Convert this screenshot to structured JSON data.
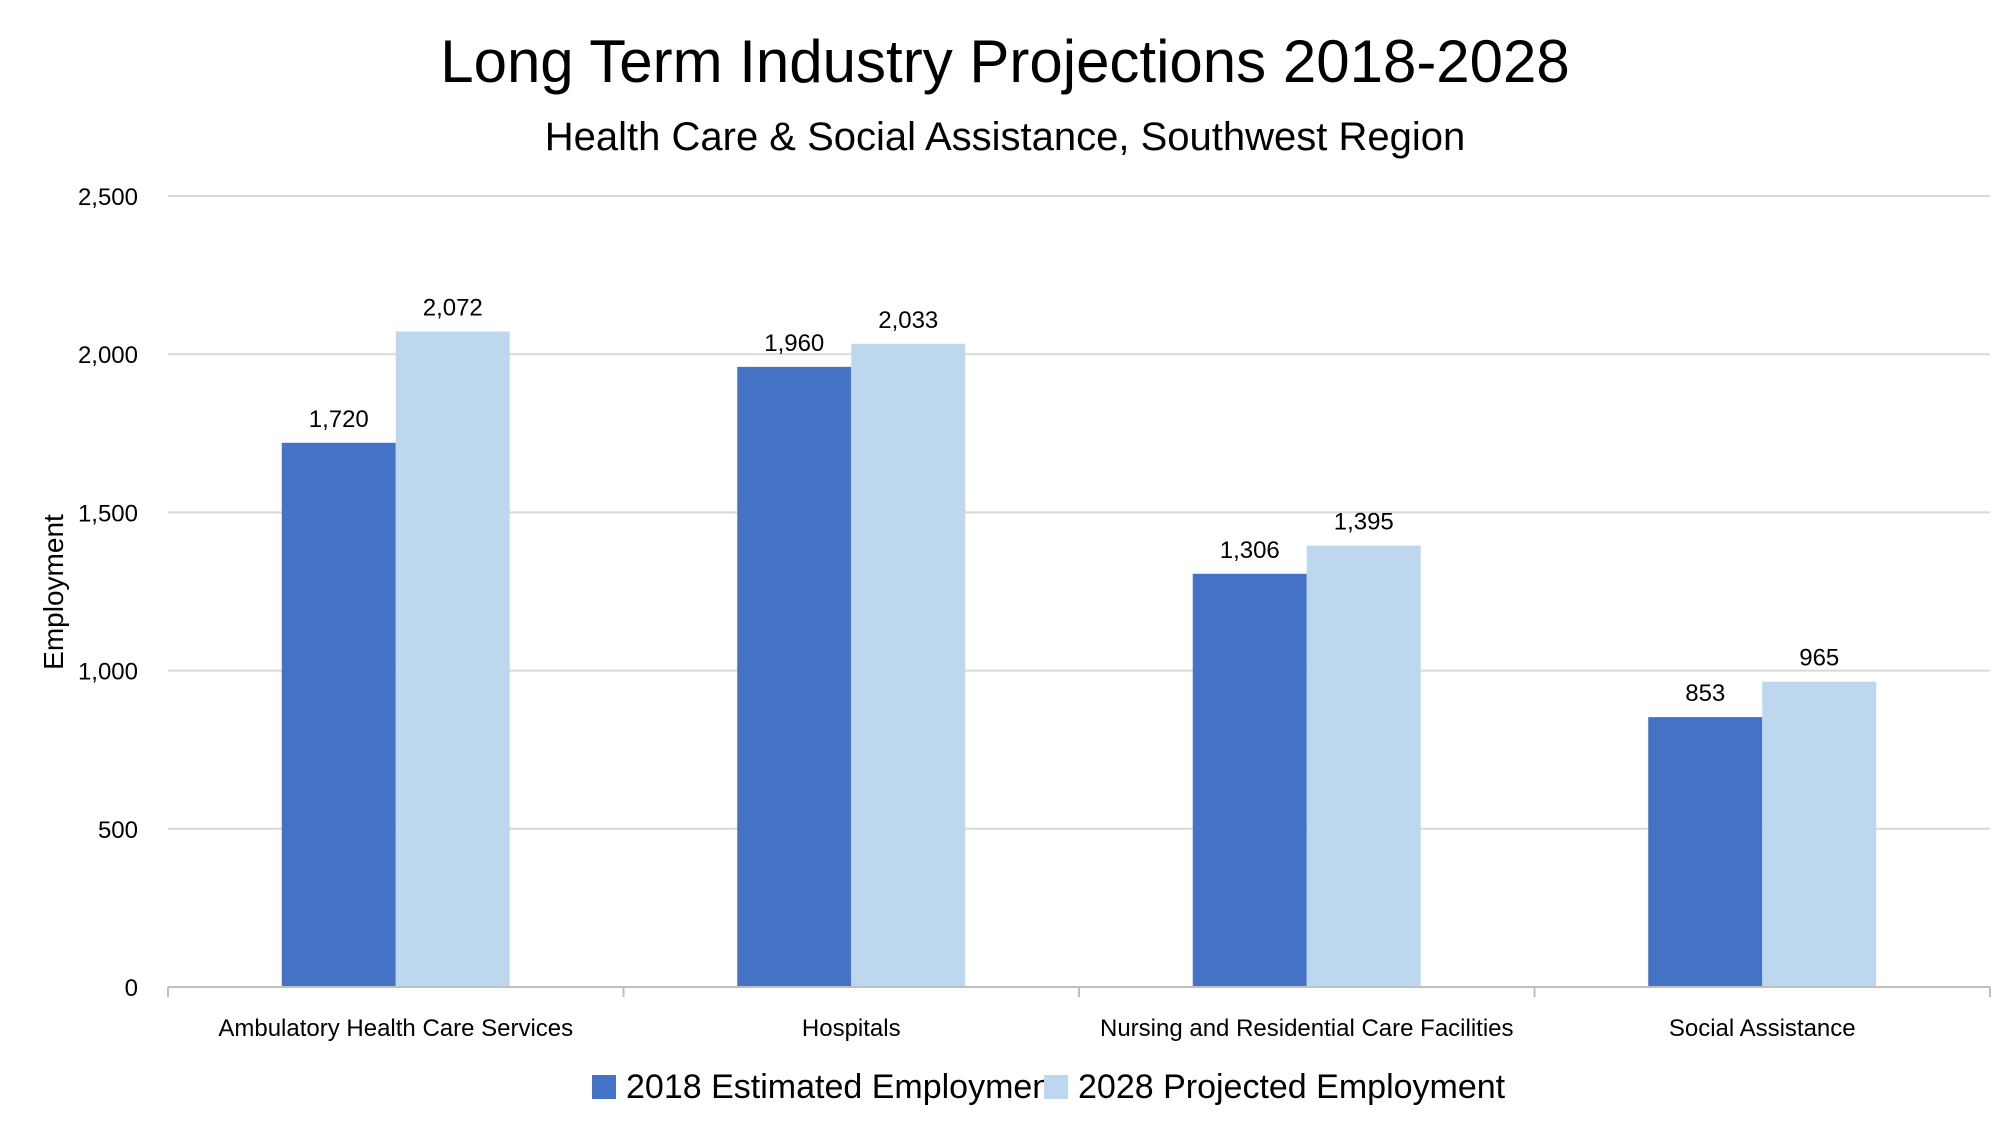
{
  "chart_data": {
    "type": "bar",
    "title": "Long Term Industry Projections 2018-2028",
    "subtitle": "Health Care & Social Assistance, Southwest Region",
    "xlabel": "",
    "ylabel": "Employment",
    "ylim": [
      0,
      2500
    ],
    "yticks": [
      0,
      500,
      1000,
      1500,
      2000,
      2500
    ],
    "ytick_labels": [
      "0",
      "500",
      "1,000",
      "1,500",
      "2,000",
      "2,500"
    ],
    "grid": true,
    "legend_position": "bottom",
    "categories": [
      "Ambulatory Health Care Services",
      "Hospitals",
      "Nursing and Residential Care Facilities",
      "Social Assistance"
    ],
    "series": [
      {
        "name": "2018  Estimated Employment",
        "color": "#4472c4",
        "values": [
          1720,
          1960,
          1306,
          853
        ],
        "labels": [
          "1,720",
          "1,960",
          "1,306",
          "853"
        ]
      },
      {
        "name": "2028  Projected Employment",
        "color": "#bdd7ee",
        "values": [
          2072,
          2033,
          1395,
          965
        ],
        "labels": [
          "2,072",
          "2,033",
          "1,395",
          "965"
        ]
      }
    ]
  }
}
